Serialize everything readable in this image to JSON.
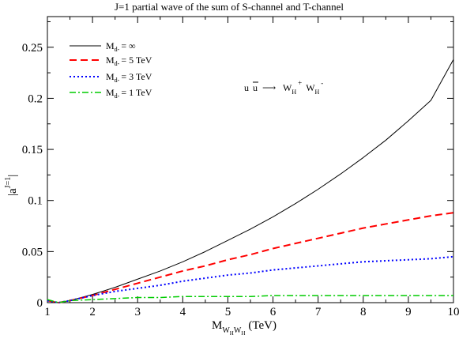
{
  "chart_data": {
    "type": "line",
    "title": "J=1 partial wave of the sum of S-channel and T-channel",
    "xlabel": {
      "main": "M",
      "sub1": "W",
      "sub1_sub": "H",
      "sub2": "W",
      "sub2_sub": "H",
      "unit": "(TeV)"
    },
    "ylabel": {
      "base": "|a",
      "sup": "J=1",
      "close": "|"
    },
    "xlim": [
      1,
      10
    ],
    "ylim": [
      0,
      0.28
    ],
    "xticks": [
      "1",
      "2",
      "3",
      "4",
      "5",
      "6",
      "7",
      "8",
      "9",
      "10"
    ],
    "yticks": [
      "0",
      "0.05",
      "0.1",
      "0.15",
      "0.2",
      "0.25"
    ],
    "annotation": {
      "left": "u",
      "left2": "u",
      "arrow": "⟶",
      "w1": "W",
      "w1_sub": "H",
      "w1_sup": "+",
      "w2": "W",
      "w2_sub": "H",
      "w2_sup": "-"
    },
    "legend_position": "top-left",
    "series": [
      {
        "name": {
          "m": "M",
          "sub": "d-",
          "rest": "= ∞"
        },
        "color": "#000000",
        "style": "solid",
        "x": [
          1,
          1.25,
          1.5,
          2,
          2.5,
          3,
          3.5,
          4,
          4.5,
          5,
          5.5,
          6,
          6.5,
          7,
          7.5,
          8,
          8.5,
          9,
          9.5,
          10
        ],
        "y": [
          0.002,
          0.0,
          0.002,
          0.008,
          0.015,
          0.023,
          0.031,
          0.04,
          0.05,
          0.061,
          0.072,
          0.084,
          0.097,
          0.111,
          0.126,
          0.142,
          0.159,
          0.178,
          0.198,
          0.238
        ]
      },
      {
        "name": {
          "m": "M",
          "sub": "d-",
          "rest": "= 5 TeV"
        },
        "color": "#ff0000",
        "style": "dashed",
        "x": [
          1,
          1.25,
          1.5,
          2,
          2.5,
          3,
          3.5,
          4,
          4.5,
          5,
          5.5,
          6,
          6.5,
          7,
          7.5,
          8,
          8.5,
          9,
          9.5,
          10
        ],
        "y": [
          0.002,
          0.0,
          0.002,
          0.007,
          0.013,
          0.019,
          0.025,
          0.031,
          0.036,
          0.042,
          0.047,
          0.053,
          0.058,
          0.063,
          0.068,
          0.073,
          0.077,
          0.081,
          0.085,
          0.088
        ]
      },
      {
        "name": {
          "m": "M",
          "sub": "d-",
          "rest": "= 3 TeV"
        },
        "color": "#0000ff",
        "style": "dotted",
        "x": [
          1,
          1.25,
          1.5,
          2,
          2.5,
          3,
          3.5,
          4,
          4.5,
          5,
          5.5,
          6,
          6.5,
          7,
          7.5,
          8,
          8.5,
          9,
          9.5,
          10
        ],
        "y": [
          0.002,
          0.0,
          0.002,
          0.007,
          0.011,
          0.014,
          0.017,
          0.021,
          0.024,
          0.027,
          0.029,
          0.032,
          0.034,
          0.036,
          0.038,
          0.04,
          0.041,
          0.042,
          0.043,
          0.045
        ]
      },
      {
        "name": {
          "m": "M",
          "sub": "d-",
          "rest": "= 1 TeV"
        },
        "color": "#00cc00",
        "style": "dashdot",
        "x": [
          1,
          1.25,
          1.5,
          2,
          2.5,
          3,
          3.5,
          4,
          4.5,
          5,
          5.5,
          6,
          6.5,
          7,
          7.5,
          8,
          8.5,
          9,
          9.5,
          10
        ],
        "y": [
          0.003,
          0.0,
          0.002,
          0.003,
          0.004,
          0.005,
          0.005,
          0.006,
          0.006,
          0.006,
          0.006,
          0.007,
          0.007,
          0.007,
          0.007,
          0.007,
          0.007,
          0.007,
          0.007,
          0.007
        ]
      }
    ]
  }
}
